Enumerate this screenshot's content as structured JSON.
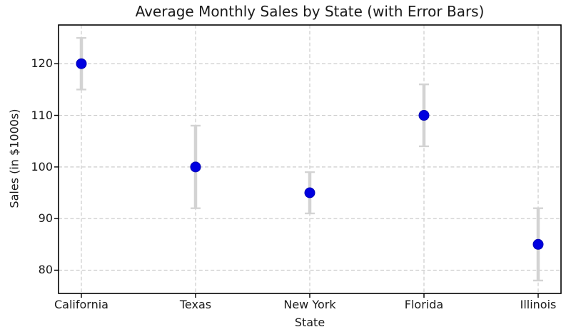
{
  "chart_data": {
    "type": "scatter",
    "subtype": "errorbar",
    "title": "Average Monthly Sales by State (with Error Bars)",
    "xlabel": "State",
    "ylabel": "Sales (in $1000s)",
    "categories": [
      "California",
      "Texas",
      "New York",
      "Florida",
      "Illinois"
    ],
    "series": [
      {
        "name": "Average Monthly Sales",
        "values": [
          120,
          100,
          95,
          110,
          85
        ],
        "errors": [
          5,
          8,
          4,
          6,
          7
        ]
      }
    ],
    "error_ranges": [
      {
        "low": 115,
        "high": 125
      },
      {
        "low": 92,
        "high": 108
      },
      {
        "low": 91,
        "high": 99
      },
      {
        "low": 104,
        "high": 116
      },
      {
        "low": 78,
        "high": 92
      }
    ],
    "yticks": [
      80,
      90,
      100,
      110,
      120
    ],
    "ylim": [
      75.5,
      127.5
    ],
    "xlim": [
      -0.2,
      4.2
    ],
    "grid": true,
    "grid_style": "dashed",
    "legend": "none",
    "colors": {
      "marker": "#0000e0",
      "marker_edge": "#0000b4",
      "error_bar": "#d3d3d3",
      "grid": "#cccccc",
      "spine": "#000000",
      "background": "#ffffff",
      "text": "#1a1a1a"
    }
  }
}
